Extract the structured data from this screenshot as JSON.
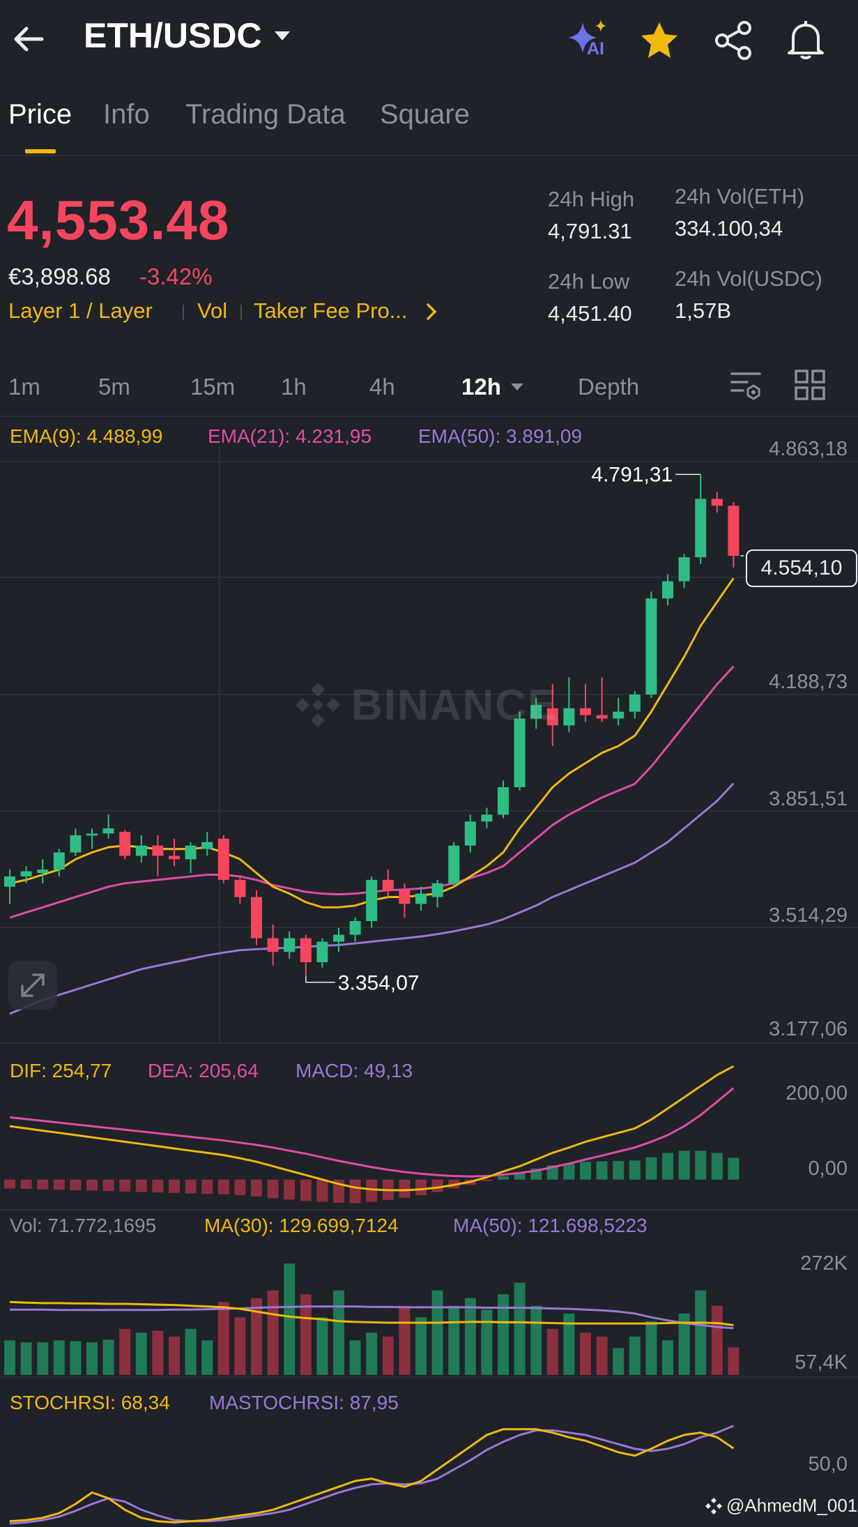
{
  "header": {
    "pair": "ETH/USDC",
    "ai_label": "AI"
  },
  "tabs": [
    {
      "label": "Price",
      "active": true
    },
    {
      "label": "Info",
      "active": false
    },
    {
      "label": "Trading Data",
      "active": false
    },
    {
      "label": "Square",
      "active": false
    }
  ],
  "price": {
    "last": "4,553.48",
    "fiat": "€3,898.68",
    "change": "-3.42%",
    "tags": [
      "Layer 1 / Layer",
      "Vol",
      "Taker Fee Pro..."
    ]
  },
  "stats": {
    "high_label": "24h High",
    "high": "4,791.31",
    "low_label": "24h Low",
    "low": "4,451.40",
    "vol_base_label": "24h Vol(ETH)",
    "vol_base": "334.100,34",
    "vol_quote_label": "24h Vol(USDC)",
    "vol_quote": "1,57B"
  },
  "timeframes": [
    "1m",
    "5m",
    "15m",
    "1h",
    "4h",
    "12h",
    "Depth"
  ],
  "active_timeframe": "12h",
  "indicators": {
    "ema9": "EMA(9): 4.488,99",
    "ema21": "EMA(21): 4.231,95",
    "ema50": "EMA(50): 3.891,09",
    "dif": "DIF: 254,77",
    "dea": "DEA: 205,64",
    "macd": "MACD: 49,13",
    "vol": "Vol: 71.772,1695",
    "ma30": "MA(30): 129.699,7124",
    "ma50": "MA(50): 121.698,5223",
    "stochrsi": "STOCHRSI: 68,34",
    "mastochrsi": "MASTOCHRSI: 87,95"
  },
  "colors": {
    "up": "#2ebd85",
    "down": "#f6465d",
    "accent": "#f0b90b",
    "ema9": "#f0b90b",
    "ema21": "#e04ca6",
    "ema50": "#9a78d6"
  },
  "watermark": "BINANCE",
  "credit": "@AhmedM_001",
  "chart_data": [
    {
      "type": "candlestick",
      "price_axis": [
        "4.863,18",
        "4.188,73",
        "3.851,51",
        "3.514,29",
        "3.177,06"
      ],
      "ylim": [
        3177.06,
        4863.18
      ],
      "high_marker": "4.791,31",
      "low_marker": "3.354,07",
      "last_price_label": "4.554,10",
      "candles": [
        [
          3590,
          3640,
          3540,
          3620
        ],
        [
          3620,
          3650,
          3600,
          3635
        ],
        [
          3630,
          3670,
          3600,
          3640
        ],
        [
          3640,
          3700,
          3620,
          3690
        ],
        [
          3690,
          3760,
          3680,
          3740
        ],
        [
          3740,
          3760,
          3700,
          3745
        ],
        [
          3745,
          3800,
          3730,
          3760
        ],
        [
          3750,
          3755,
          3670,
          3680
        ],
        [
          3680,
          3740,
          3660,
          3710
        ],
        [
          3710,
          3740,
          3620,
          3680
        ],
        [
          3680,
          3730,
          3650,
          3670
        ],
        [
          3670,
          3720,
          3630,
          3710
        ],
        [
          3700,
          3750,
          3680,
          3720
        ],
        [
          3730,
          3740,
          3600,
          3610
        ],
        [
          3610,
          3620,
          3540,
          3560
        ],
        [
          3560,
          3580,
          3420,
          3440
        ],
        [
          3440,
          3480,
          3360,
          3400
        ],
        [
          3400,
          3460,
          3380,
          3440
        ],
        [
          3440,
          3450,
          3330,
          3370
        ],
        [
          3370,
          3440,
          3354,
          3430
        ],
        [
          3430,
          3470,
          3400,
          3450
        ],
        [
          3450,
          3500,
          3430,
          3490
        ],
        [
          3490,
          3620,
          3470,
          3610
        ],
        [
          3610,
          3640,
          3560,
          3580
        ],
        [
          3580,
          3600,
          3500,
          3540
        ],
        [
          3540,
          3590,
          3520,
          3570
        ],
        [
          3560,
          3610,
          3530,
          3600
        ],
        [
          3600,
          3720,
          3590,
          3710
        ],
        [
          3710,
          3800,
          3690,
          3780
        ],
        [
          3780,
          3820,
          3760,
          3800
        ],
        [
          3800,
          3900,
          3790,
          3880
        ],
        [
          3880,
          4100,
          3870,
          4080
        ],
        [
          4080,
          4140,
          4050,
          4120
        ],
        [
          4110,
          4180,
          4000,
          4060
        ],
        [
          4060,
          4200,
          4040,
          4110
        ],
        [
          4110,
          4180,
          4070,
          4090
        ],
        [
          4090,
          4200,
          4070,
          4080
        ],
        [
          4080,
          4140,
          4060,
          4100
        ],
        [
          4100,
          4160,
          4080,
          4150
        ],
        [
          4150,
          4450,
          4140,
          4430
        ],
        [
          4430,
          4500,
          4410,
          4480
        ],
        [
          4480,
          4560,
          4460,
          4550
        ],
        [
          4550,
          4791.31,
          4530,
          4720
        ],
        [
          4720,
          4740,
          4680,
          4700
        ],
        [
          4700,
          4710,
          4520,
          4554.1
        ]
      ],
      "ema9": [
        3600,
        3610,
        3625,
        3640,
        3670,
        3690,
        3705,
        3710,
        3705,
        3700,
        3700,
        3700,
        3705,
        3690,
        3670,
        3630,
        3590,
        3570,
        3545,
        3530,
        3530,
        3535,
        3550,
        3560,
        3560,
        3565,
        3570,
        3590,
        3620,
        3650,
        3690,
        3760,
        3820,
        3880,
        3920,
        3950,
        3980,
        4000,
        4030,
        4100,
        4180,
        4260,
        4350,
        4420,
        4488.99
      ],
      "ema21": [
        3500,
        3515,
        3530,
        3545,
        3560,
        3575,
        3590,
        3600,
        3605,
        3610,
        3615,
        3620,
        3625,
        3625,
        3620,
        3610,
        3595,
        3585,
        3575,
        3570,
        3568,
        3570,
        3575,
        3580,
        3582,
        3585,
        3590,
        3600,
        3615,
        3630,
        3650,
        3690,
        3730,
        3770,
        3800,
        3825,
        3850,
        3870,
        3890,
        3940,
        4000,
        4060,
        4120,
        4180,
        4231.95
      ],
      "ema50": [
        3220,
        3240,
        3260,
        3275,
        3290,
        3305,
        3320,
        3335,
        3350,
        3360,
        3370,
        3380,
        3390,
        3398,
        3405,
        3408,
        3410,
        3412,
        3415,
        3418,
        3420,
        3425,
        3430,
        3435,
        3440,
        3445,
        3452,
        3460,
        3470,
        3480,
        3495,
        3515,
        3535,
        3560,
        3580,
        3600,
        3620,
        3640,
        3660,
        3690,
        3720,
        3760,
        3800,
        3840,
        3891.09
      ]
    },
    {
      "type": "macd",
      "axis": [
        "200,00",
        "0,00"
      ],
      "ylim": [
        -60,
        230
      ],
      "dif": [
        120,
        115,
        110,
        105,
        100,
        95,
        90,
        85,
        80,
        75,
        70,
        65,
        60,
        55,
        48,
        40,
        30,
        20,
        10,
        0,
        -10,
        -18,
        -22,
        -24,
        -24,
        -22,
        -18,
        -12,
        -5,
        5,
        18,
        30,
        45,
        60,
        72,
        85,
        95,
        105,
        115,
        135,
        160,
        185,
        210,
        235,
        254.77
      ],
      "dea": [
        140,
        136,
        132,
        128,
        124,
        120,
        116,
        112,
        108,
        104,
        100,
        96,
        92,
        88,
        83,
        78,
        72,
        65,
        58,
        50,
        42,
        35,
        28,
        22,
        17,
        13,
        10,
        8,
        7,
        8,
        11,
        15,
        20,
        28,
        36,
        45,
        54,
        63,
        72,
        85,
        100,
        120,
        145,
        175,
        205.64
      ],
      "hist": [
        -20,
        -21,
        -22,
        -23,
        -24,
        -25,
        -26,
        -27,
        -28,
        -29,
        -30,
        -31,
        -32,
        -33,
        -35,
        -38,
        -42,
        -45,
        -48,
        -50,
        -52,
        -53,
        -50,
        -46,
        -41,
        -35,
        -28,
        -20,
        -12,
        -3,
        7,
        15,
        25,
        32,
        36,
        40,
        41,
        42,
        43,
        50,
        60,
        65,
        65,
        60,
        49.13
      ]
    },
    {
      "type": "volume",
      "axis": [
        "272K",
        "57,4K"
      ],
      "ylim": [
        0,
        330000
      ],
      "volumes": [
        90000,
        85000,
        85000,
        90000,
        88000,
        85000,
        92000,
        120000,
        110000,
        115000,
        100000,
        120000,
        90000,
        190000,
        150000,
        200000,
        220000,
        290000,
        210000,
        150000,
        220000,
        90000,
        110000,
        100000,
        180000,
        150000,
        220000,
        180000,
        200000,
        170000,
        210000,
        240000,
        180000,
        120000,
        160000,
        110000,
        100000,
        70000,
        100000,
        140000,
        90000,
        160000,
        220000,
        180000,
        71772
      ],
      "ma30": [
        190000,
        188000,
        187000,
        187000,
        186000,
        186000,
        185000,
        185000,
        184000,
        183000,
        182000,
        180000,
        178000,
        176000,
        172000,
        165000,
        158000,
        152000,
        148000,
        145000,
        140000,
        138000,
        137000,
        136000,
        136000,
        136000,
        136000,
        137000,
        138000,
        138000,
        137000,
        137000,
        136000,
        135000,
        134000,
        134000,
        134000,
        134000,
        134000,
        134000,
        135000,
        136000,
        136000,
        135000,
        129699
      ],
      "ma50": [
        170000,
        170000,
        170000,
        169000,
        169000,
        169000,
        169000,
        169000,
        169000,
        169000,
        170000,
        170000,
        171000,
        172000,
        173000,
        175000,
        176000,
        177000,
        178000,
        178000,
        178000,
        178000,
        177000,
        177000,
        176000,
        176000,
        176000,
        176000,
        176000,
        175000,
        175000,
        175000,
        174000,
        173000,
        172000,
        170000,
        168000,
        165000,
        160000,
        150000,
        142000,
        135000,
        130000,
        125000,
        121698
      ]
    },
    {
      "type": "stochrsi",
      "axis": [
        "50,0"
      ],
      "ylim": [
        0,
        100
      ],
      "stochrsi": [
        5,
        6,
        8,
        12,
        20,
        30,
        25,
        15,
        8,
        5,
        4,
        5,
        6,
        8,
        10,
        12,
        15,
        20,
        25,
        30,
        35,
        40,
        42,
        38,
        35,
        40,
        50,
        60,
        70,
        80,
        85,
        85,
        85,
        82,
        78,
        75,
        70,
        65,
        62,
        68,
        75,
        80,
        82,
        78,
        68.34
      ],
      "mastochrsi": [
        3,
        4,
        6,
        9,
        14,
        20,
        25,
        22,
        15,
        10,
        6,
        5,
        5,
        6,
        8,
        10,
        12,
        15,
        20,
        25,
        30,
        34,
        37,
        38,
        37,
        38,
        42,
        50,
        58,
        67,
        74,
        80,
        84,
        84,
        82,
        80,
        76,
        72,
        68,
        66,
        68,
        72,
        78,
        82,
        87.95
      ]
    }
  ]
}
